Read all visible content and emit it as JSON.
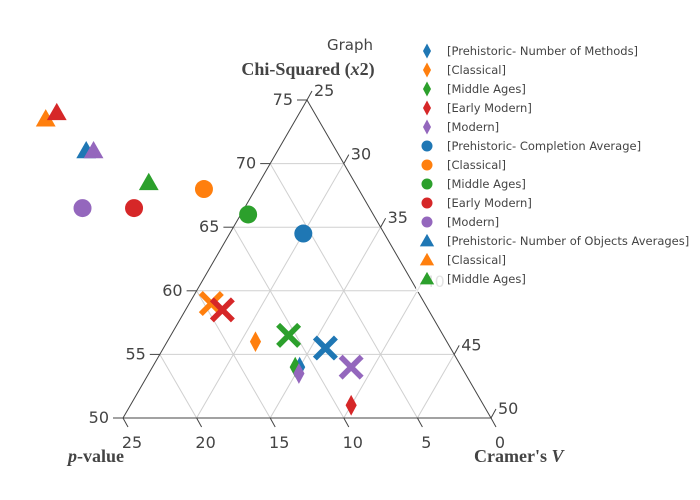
{
  "chart_data": {
    "type": "ternary-scatter",
    "title": "Graph",
    "axes": {
      "top_title": "Chi-Squared (x2)",
      "left_title": "p-value",
      "right_title": "Cramer's V",
      "top_ticks": [
        "50",
        "55",
        "60",
        "65",
        "70",
        "75"
      ],
      "bottom_ticks": [
        "25",
        "20",
        "15",
        "10",
        "5",
        "0"
      ],
      "right_ticks": [
        "25",
        "30",
        "35",
        "40",
        "45",
        "50"
      ]
    },
    "grid": true,
    "legend_position": "top-right",
    "legend": [
      {
        "label": "[Prehistoric- Number of Methods]",
        "symbol": "diamond",
        "color": "#1f77b4"
      },
      {
        "label": "[Classical]",
        "symbol": "diamond",
        "color": "#ff7f0e"
      },
      {
        "label": "[Middle Ages]",
        "symbol": "diamond",
        "color": "#2ca02c"
      },
      {
        "label": "[Early Modern]",
        "symbol": "diamond",
        "color": "#d62728"
      },
      {
        "label": "[Modern]",
        "symbol": "diamond",
        "color": "#9467bd"
      },
      {
        "label": "[Prehistoric- Completion Average]",
        "symbol": "circle",
        "color": "#1f77b4"
      },
      {
        "label": "[Classical]",
        "symbol": "circle",
        "color": "#ff7f0e"
      },
      {
        "label": "[Middle Ages]",
        "symbol": "circle",
        "color": "#2ca02c"
      },
      {
        "label": "[Early Modern]",
        "symbol": "circle",
        "color": "#d62728"
      },
      {
        "label": "[Modern]",
        "symbol": "circle",
        "color": "#9467bd"
      },
      {
        "label": "[Prehistoric- Number of Objects Averages]",
        "symbol": "triangle",
        "color": "#1f77b4"
      },
      {
        "label": "[Classical]",
        "symbol": "triangle",
        "color": "#ff7f0e"
      },
      {
        "label": "[Middle Ages]",
        "symbol": "triangle",
        "color": "#2ca02c"
      }
    ],
    "points": [
      {
        "symbol": "diamond",
        "color": "#1f77b4",
        "a": 54.0,
        "b": 11.0,
        "c": 35.0
      },
      {
        "symbol": "diamond",
        "color": "#ff7f0e",
        "a": 56.0,
        "b": 13.0,
        "c": 31.0
      },
      {
        "symbol": "diamond",
        "color": "#2ca02c",
        "a": 54.0,
        "b": 11.3,
        "c": 34.7
      },
      {
        "symbol": "diamond",
        "color": "#d62728",
        "a": 51.0,
        "b": 9.0,
        "c": 40.0
      },
      {
        "symbol": "diamond",
        "color": "#9467bd",
        "a": 53.5,
        "b": 11.3,
        "c": 35.2
      },
      {
        "symbol": "circle",
        "color": "#1f77b4",
        "a": 64.5,
        "b": 5.5,
        "c": 30.0
      },
      {
        "symbol": "circle",
        "color": "#ff7f0e",
        "a": 68.0,
        "b": 10.5,
        "c": 21.5
      },
      {
        "symbol": "circle",
        "color": "#2ca02c",
        "a": 66.0,
        "b": 8.5,
        "c": 25.5
      },
      {
        "symbol": "circle",
        "color": "#d62728",
        "a": 66.5,
        "b": 16.0,
        "c": 17.5
      },
      {
        "symbol": "circle",
        "color": "#9467bd",
        "a": 66.5,
        "b": 19.5,
        "c": 14.0
      },
      {
        "symbol": "triangle",
        "color": "#1f77b4",
        "a": 71.0,
        "b": 17.0,
        "c": 12.0
      },
      {
        "symbol": "triangle",
        "color": "#ff7f0e",
        "a": 73.5,
        "b": 18.5,
        "c": 8.0
      },
      {
        "symbol": "triangle",
        "color": "#2ca02c",
        "a": 68.5,
        "b": 14.0,
        "c": 17.5
      },
      {
        "symbol": "triangle",
        "color": "#d62728",
        "a": 74.0,
        "b": 17.5,
        "c": 8.5
      },
      {
        "symbol": "triangle",
        "color": "#9467bd",
        "a": 71.0,
        "b": 16.5,
        "c": 12.5
      },
      {
        "symbol": "x",
        "color": "#ff7f0e",
        "a": 59.0,
        "b": 14.5,
        "c": 26.5
      },
      {
        "symbol": "x",
        "color": "#d62728",
        "a": 58.5,
        "b": 14.0,
        "c": 27.5
      },
      {
        "symbol": "x",
        "color": "#2ca02c",
        "a": 56.5,
        "b": 10.5,
        "c": 33.0
      },
      {
        "symbol": "x",
        "color": "#1f77b4",
        "a": 55.5,
        "b": 8.5,
        "c": 36.0
      },
      {
        "symbol": "x",
        "color": "#9467bd",
        "a": 54.0,
        "b": 7.5,
        "c": 38.5
      }
    ]
  }
}
